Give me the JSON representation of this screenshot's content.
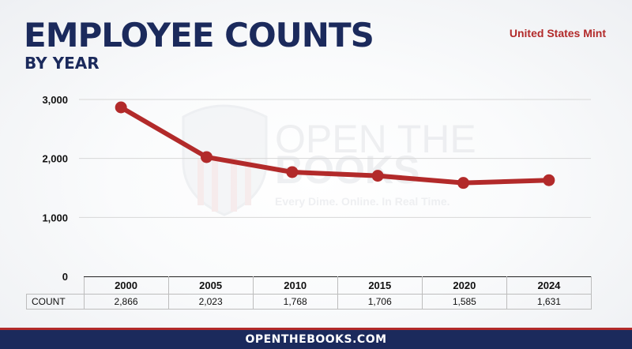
{
  "header": {
    "title": "EMPLOYEE COUNTS",
    "subtitle": "BY YEAR",
    "source": "United States Mint"
  },
  "watermark": {
    "line1": "OPEN THE",
    "line2": "BOOKS",
    "tagline": "Every Dime. Online. In Real Time."
  },
  "table": {
    "row_label": "COUNT",
    "counts_text": [
      "2,866",
      "2,023",
      "1,768",
      "1,706",
      "1,585",
      "1,631"
    ]
  },
  "footer": {
    "text": "OPENTHEBOOKS.COM"
  },
  "colors": {
    "line": "#b22a2a",
    "navy": "#1b2a5c",
    "grid": "#d7d7d7"
  },
  "chart_data": {
    "type": "line",
    "title": "EMPLOYEE COUNTS",
    "subtitle": "BY YEAR",
    "categories": [
      "2000",
      "2005",
      "2010",
      "2015",
      "2020",
      "2024"
    ],
    "series": [
      {
        "values": [
          2866,
          2023,
          1768,
          1706,
          1585,
          1631
        ]
      }
    ],
    "ylim": [
      0,
      3000
    ],
    "yticks": [
      0,
      1000,
      2000,
      3000
    ],
    "ytick_labels": [
      "0",
      "1,000",
      "2,000",
      "3,000"
    ],
    "grid": true,
    "legend": "none"
  }
}
